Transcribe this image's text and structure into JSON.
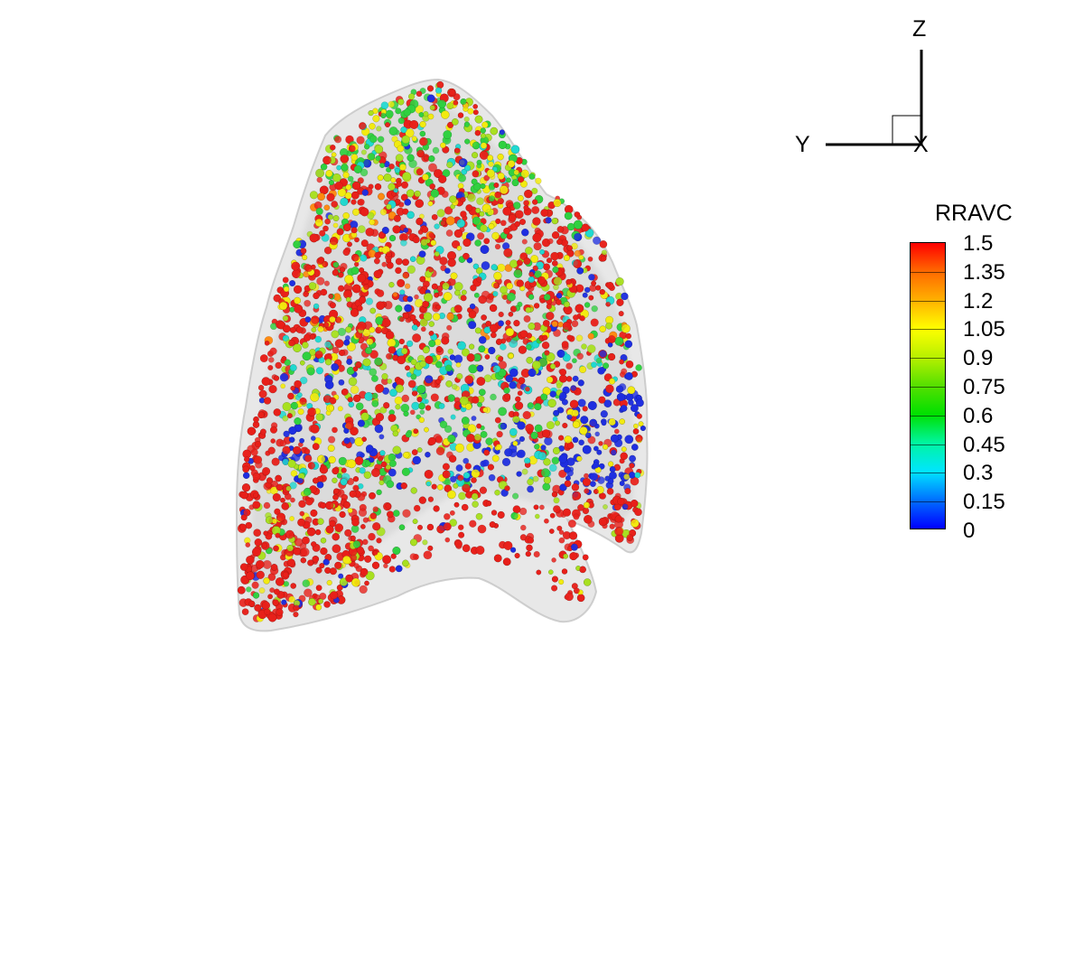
{
  "axes_triad": {
    "z_label": "Z",
    "y_label": "Y",
    "x_label": "X"
  },
  "legend": {
    "title": "RRAVC",
    "min": 0,
    "max": 1.5,
    "levels": [
      "1.5",
      "1.35",
      "1.2",
      "1.05",
      "0.9",
      "0.75",
      "0.6",
      "0.45",
      "0.3",
      "0.15",
      "0"
    ],
    "colormap": [
      "#0000ff",
      "#0070ff",
      "#00e5ff",
      "#00f5a0",
      "#00e000",
      "#55e000",
      "#b8f000",
      "#ffff00",
      "#ffb000",
      "#ff6a00",
      "#ff0000"
    ]
  },
  "scene": {
    "surface_color": "#c8c8c8",
    "colors": {
      "red": "#e8201a",
      "orange": "#ff8a10",
      "yellow": "#f2ea10",
      "lime": "#a8e020",
      "green": "#30d040",
      "cyan": "#20d8d0",
      "blue": "#1e2ee0"
    }
  }
}
